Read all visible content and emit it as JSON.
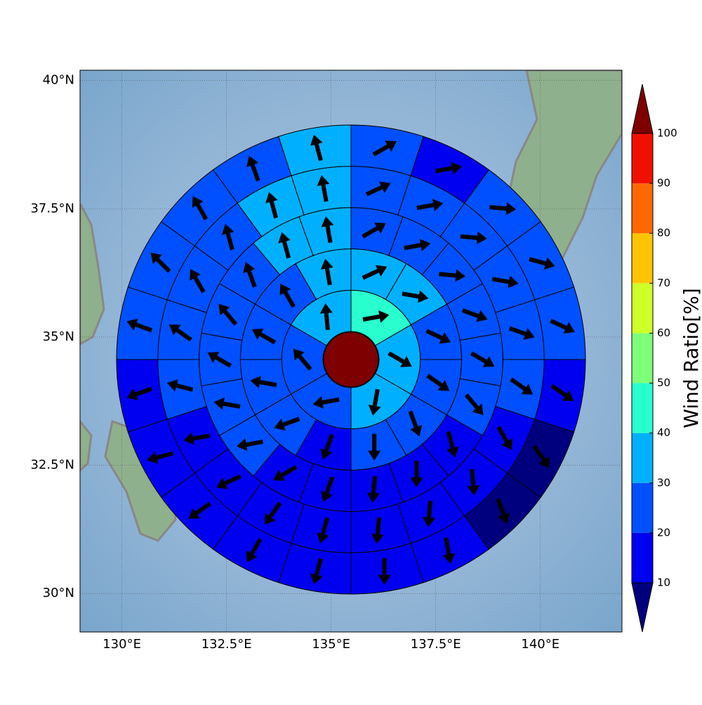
{
  "chart_data": {
    "type": "polar-sector-map",
    "xlim": [
      129.0,
      141.95
    ],
    "ylim": [
      29.25,
      40.2
    ],
    "xticks": [
      {
        "value": 130,
        "label": "130°E"
      },
      {
        "value": 132.5,
        "label": "132.5°E"
      },
      {
        "value": 135,
        "label": "135°E"
      },
      {
        "value": 137.5,
        "label": "137.5°E"
      },
      {
        "value": 140,
        "label": "140°E"
      }
    ],
    "yticks": [
      {
        "value": 30,
        "label": "30°N"
      },
      {
        "value": 32.5,
        "label": "32.5°N"
      },
      {
        "value": 35,
        "label": "35°N"
      },
      {
        "value": 37.5,
        "label": "37.5°N"
      },
      {
        "value": 40,
        "label": "40°N"
      }
    ],
    "grid": true,
    "colorbar": {
      "label": "Wind Ratio[%]",
      "levels": [
        10,
        20,
        30,
        40,
        50,
        60,
        70,
        80,
        90,
        100
      ],
      "colors": [
        "#00007f",
        "#0000f0",
        "#0050ff",
        "#00b0ff",
        "#29ffce",
        "#7dff7a",
        "#ceff29",
        "#ffc400",
        "#ff6800",
        "#f01000",
        "#7f0000"
      ]
    },
    "center_value": 101,
    "rings": [
      {
        "values": [
          45,
          35,
          35,
          25,
          25,
          35
        ],
        "directions": [
          80,
          120,
          190,
          260,
          320,
          355
        ]
      },
      {
        "values": [
          35,
          35,
          25,
          25,
          25,
          25,
          15,
          25,
          25,
          25,
          25,
          35
        ],
        "directions": [
          65,
          100,
          115,
          125,
          160,
          180,
          200,
          250,
          280,
          300,
          330,
          350
        ]
      },
      {
        "values": [
          25,
          25,
          25,
          25,
          25,
          25,
          15,
          15,
          15,
          15,
          15,
          25,
          25,
          25,
          25,
          25,
          35,
          35
        ],
        "directions": [
          60,
          80,
          95,
          110,
          120,
          140,
          165,
          180,
          185,
          200,
          240,
          260,
          280,
          300,
          320,
          340,
          345,
          350
        ]
      },
      {
        "values": [
          25,
          25,
          25,
          25,
          25,
          25,
          15,
          15,
          15,
          15,
          15,
          15,
          15,
          15,
          25,
          25,
          25,
          25,
          35,
          35
        ],
        "directions": [
          65,
          80,
          95,
          100,
          110,
          125,
          150,
          175,
          185,
          185,
          195,
          215,
          245,
          260,
          285,
          305,
          330,
          345,
          345,
          350
        ]
      },
      {
        "values": [
          25,
          15,
          25,
          25,
          25,
          15,
          5,
          5,
          15,
          15,
          15,
          15,
          15,
          15,
          15,
          25,
          25,
          25,
          25,
          35
        ],
        "directions": [
          60,
          80,
          95,
          105,
          115,
          125,
          145,
          160,
          170,
          180,
          195,
          210,
          235,
          255,
          250,
          290,
          315,
          330,
          340,
          345
        ]
      }
    ]
  }
}
